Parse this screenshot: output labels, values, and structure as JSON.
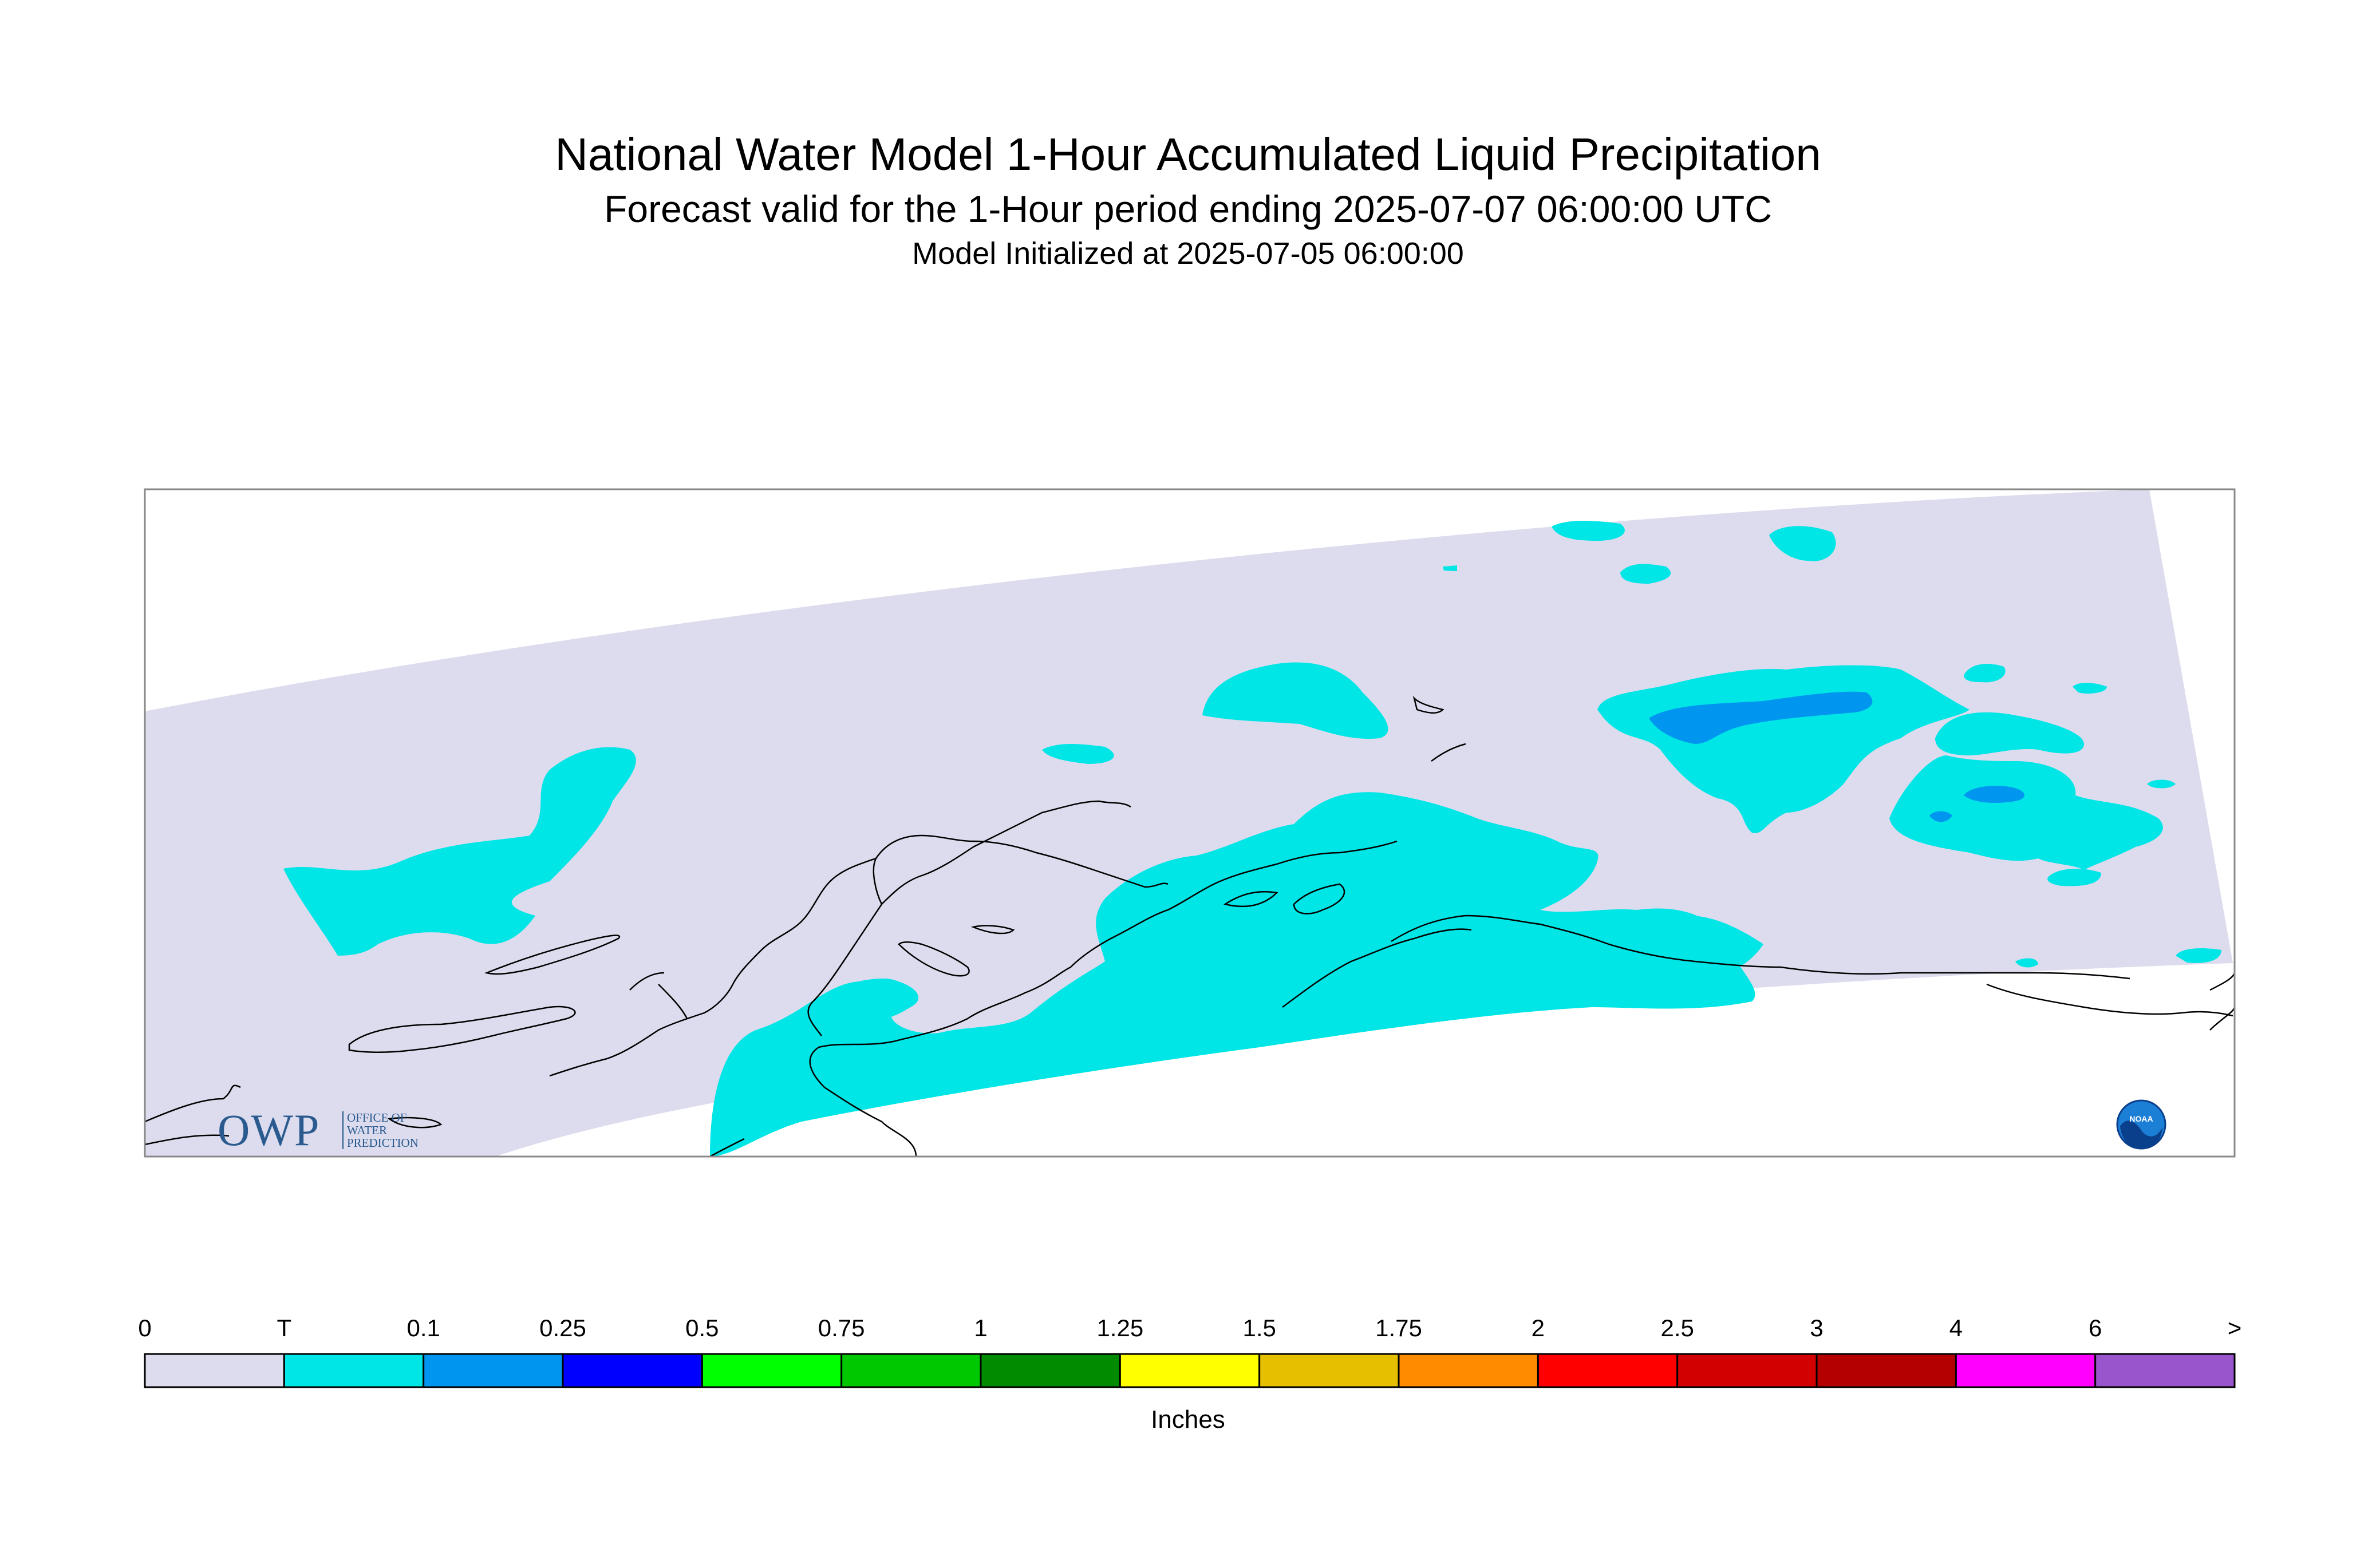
{
  "header": {
    "title": "National Water Model 1-Hour Accumulated Liquid Precipitation",
    "subtitle": "Forecast valid for the 1-Hour period ending 2025-07-07 06:00:00 UTC",
    "init_line": "Model Initialized at 2025-07-05 06:00:00"
  },
  "map": {
    "region": "Alaska",
    "domain_fill_color": "#dcdcee",
    "precip_trace_color": "#00e5e5",
    "precip_01_color": "#0096f0",
    "coastline_color": "#000000",
    "logos": {
      "owp_main": "OWP",
      "owp_small_lines": [
        "OFFICE OF",
        "WATER",
        "PREDICTION"
      ],
      "noaa_text": "NOAA"
    }
  },
  "legend": {
    "labels": [
      "0",
      "T",
      "0.1",
      "0.25",
      "0.5",
      "0.75",
      "1",
      "1.25",
      "1.5",
      "1.75",
      "2",
      "2.5",
      "3",
      "4",
      "6",
      ">"
    ],
    "colors": [
      "#dcdcee",
      "#00e5e5",
      "#0096f0",
      "#0000ff",
      "#00ff00",
      "#00c800",
      "#008c00",
      "#ffff00",
      "#e6c000",
      "#ff8c00",
      "#ff0000",
      "#d20000",
      "#b40000",
      "#ff00ff",
      "#9955cc"
    ],
    "units": "Inches"
  }
}
